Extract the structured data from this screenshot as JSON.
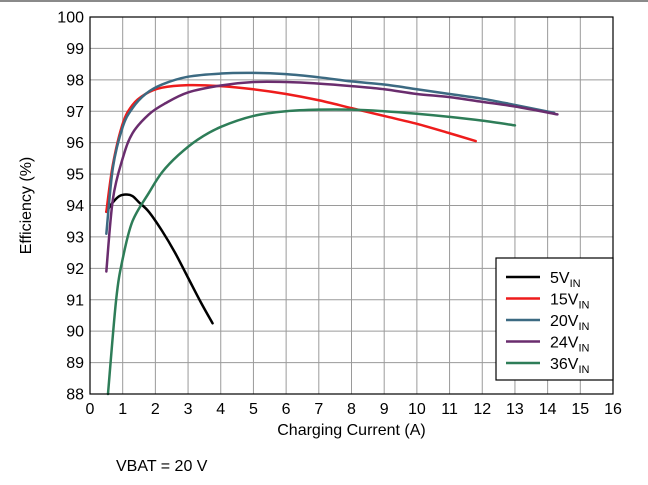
{
  "chart_data": {
    "type": "line",
    "title": "",
    "xlabel": "Charging Current (A)",
    "ylabel": "Efficiency (%)",
    "xlim": [
      0,
      16
    ],
    "ylim": [
      88,
      100
    ],
    "xticks": [
      "0",
      "1",
      "2",
      "3",
      "4",
      "5",
      "6",
      "7",
      "8",
      "9",
      "10",
      "11",
      "12",
      "13",
      "14",
      "15",
      "16"
    ],
    "yticks": [
      "88",
      "89",
      "90",
      "91",
      "92",
      "93",
      "94",
      "95",
      "96",
      "97",
      "98",
      "99",
      "100"
    ],
    "grid": true,
    "legend_position": "bottom-right",
    "series": [
      {
        "name": "5V",
        "name_sub": "IN",
        "color": "#000000",
        "points": [
          [
            0.5,
            93.8
          ],
          [
            0.7,
            94.1
          ],
          [
            0.9,
            94.3
          ],
          [
            1.1,
            94.35
          ],
          [
            1.3,
            94.3
          ],
          [
            1.5,
            94.1
          ],
          [
            1.8,
            93.8
          ],
          [
            2.2,
            93.2
          ],
          [
            2.6,
            92.5
          ],
          [
            3.0,
            91.7
          ],
          [
            3.4,
            90.9
          ],
          [
            3.75,
            90.25
          ]
        ]
      },
      {
        "name": "15V",
        "name_sub": "IN",
        "color": "#ee1c1c",
        "points": [
          [
            0.5,
            93.8
          ],
          [
            0.7,
            95.3
          ],
          [
            1.0,
            96.6
          ],
          [
            1.3,
            97.2
          ],
          [
            1.7,
            97.55
          ],
          [
            2.2,
            97.75
          ],
          [
            3.0,
            97.83
          ],
          [
            4.0,
            97.8
          ],
          [
            5.0,
            97.7
          ],
          [
            6.0,
            97.55
          ],
          [
            7.0,
            97.35
          ],
          [
            8.0,
            97.1
          ],
          [
            9.0,
            96.85
          ],
          [
            10.0,
            96.6
          ],
          [
            11.0,
            96.3
          ],
          [
            11.8,
            96.05
          ]
        ]
      },
      {
        "name": "20V",
        "name_sub": "IN",
        "color": "#3c6a82",
        "points": [
          [
            0.5,
            93.1
          ],
          [
            0.7,
            95.2
          ],
          [
            1.0,
            96.5
          ],
          [
            1.3,
            97.1
          ],
          [
            1.7,
            97.55
          ],
          [
            2.2,
            97.85
          ],
          [
            3.0,
            98.1
          ],
          [
            4.0,
            98.2
          ],
          [
            5.0,
            98.22
          ],
          [
            6.0,
            98.18
          ],
          [
            7.0,
            98.08
          ],
          [
            8.0,
            97.95
          ],
          [
            9.0,
            97.85
          ],
          [
            10.0,
            97.7
          ],
          [
            11.0,
            97.55
          ],
          [
            12.0,
            97.4
          ],
          [
            13.0,
            97.2
          ],
          [
            14.2,
            96.95
          ]
        ]
      },
      {
        "name": "24V",
        "name_sub": "IN",
        "color": "#6a2d6e",
        "points": [
          [
            0.5,
            91.9
          ],
          [
            0.7,
            94.2
          ],
          [
            1.0,
            95.5
          ],
          [
            1.3,
            96.3
          ],
          [
            1.8,
            96.9
          ],
          [
            2.3,
            97.25
          ],
          [
            3.0,
            97.6
          ],
          [
            4.0,
            97.82
          ],
          [
            5.0,
            97.93
          ],
          [
            6.0,
            97.93
          ],
          [
            7.0,
            97.88
          ],
          [
            8.0,
            97.8
          ],
          [
            9.0,
            97.7
          ],
          [
            10.0,
            97.55
          ],
          [
            11.0,
            97.45
          ],
          [
            12.0,
            97.3
          ],
          [
            13.0,
            97.15
          ],
          [
            14.3,
            96.9
          ]
        ]
      },
      {
        "name": "36V",
        "name_sub": "IN",
        "color": "#2e7d58",
        "points": [
          [
            0.55,
            88.0
          ],
          [
            0.8,
            91.0
          ],
          [
            1.0,
            92.3
          ],
          [
            1.3,
            93.5
          ],
          [
            1.8,
            94.4
          ],
          [
            2.2,
            95.05
          ],
          [
            2.7,
            95.6
          ],
          [
            3.3,
            96.1
          ],
          [
            4.0,
            96.5
          ],
          [
            5.0,
            96.85
          ],
          [
            6.0,
            97.0
          ],
          [
            7.0,
            97.05
          ],
          [
            8.0,
            97.05
          ],
          [
            9.0,
            97.0
          ],
          [
            10.0,
            96.92
          ],
          [
            11.0,
            96.82
          ],
          [
            12.0,
            96.7
          ],
          [
            13.0,
            96.55
          ]
        ]
      }
    ]
  },
  "note": "VBAT = 20 V"
}
